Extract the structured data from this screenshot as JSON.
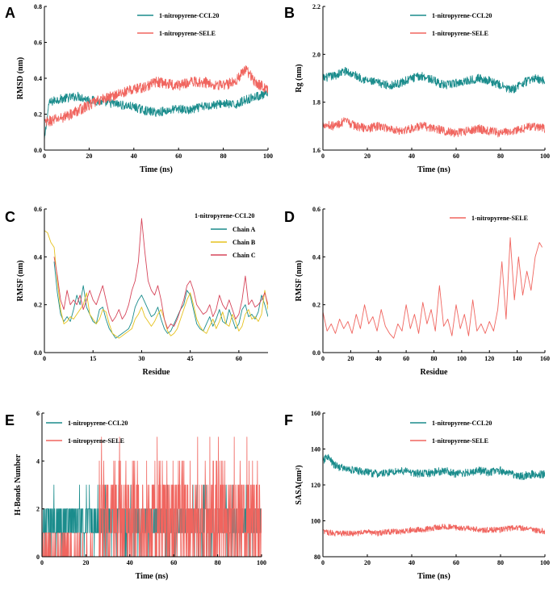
{
  "figure": {
    "colors": {
      "teal": "#1A8C8C",
      "salmon": "#F0655F",
      "gold": "#E6C21F",
      "crimson": "#D6455A",
      "axis": "#000000"
    }
  },
  "chart_data": [
    {
      "id": "A",
      "panel_label": "A",
      "type": "line",
      "title": "",
      "xlabel": "Time (ns)",
      "ylabel": "RMSD (nm)",
      "xlim": [
        0,
        100
      ],
      "ylim": [
        0,
        0.8
      ],
      "xticks": [
        0,
        20,
        40,
        60,
        80,
        100
      ],
      "yticks": [
        0.0,
        0.2,
        0.4,
        0.6,
        0.8
      ],
      "legend_title": "",
      "legend_position": "top-right",
      "series": [
        {
          "name": "1-nitropyrene-CCL20",
          "color": "#1A8C8C",
          "x": [
            0,
            2,
            5,
            10,
            15,
            20,
            25,
            30,
            35,
            40,
            45,
            50,
            55,
            60,
            65,
            70,
            75,
            80,
            85,
            90,
            95,
            100
          ],
          "y": [
            0.05,
            0.26,
            0.28,
            0.29,
            0.3,
            0.28,
            0.27,
            0.26,
            0.25,
            0.24,
            0.22,
            0.21,
            0.22,
            0.23,
            0.22,
            0.24,
            0.25,
            0.26,
            0.25,
            0.28,
            0.3,
            0.31
          ],
          "noise": 0.025
        },
        {
          "name": "1-nitropyrene-SELE",
          "color": "#F0655F",
          "x": [
            0,
            2,
            5,
            10,
            15,
            20,
            25,
            30,
            35,
            40,
            45,
            50,
            55,
            60,
            65,
            70,
            75,
            80,
            85,
            90,
            95,
            100
          ],
          "y": [
            0.15,
            0.16,
            0.17,
            0.19,
            0.22,
            0.25,
            0.28,
            0.3,
            0.32,
            0.34,
            0.35,
            0.38,
            0.37,
            0.36,
            0.38,
            0.38,
            0.37,
            0.36,
            0.38,
            0.45,
            0.37,
            0.34
          ],
          "noise": 0.03
        }
      ]
    },
    {
      "id": "B",
      "panel_label": "B",
      "type": "line",
      "title": "",
      "xlabel": "Time (ns)",
      "ylabel": "Rg (nm)",
      "xlim": [
        0,
        100
      ],
      "ylim": [
        1.6,
        2.2
      ],
      "xticks": [
        0,
        20,
        40,
        60,
        80,
        100
      ],
      "yticks": [
        1.6,
        1.8,
        2.0,
        2.2
      ],
      "legend_title": "",
      "legend_position": "top-right",
      "series": [
        {
          "name": "1-nitropyrene-CCL20",
          "color": "#1A8C8C",
          "x": [
            0,
            5,
            10,
            15,
            20,
            25,
            30,
            35,
            40,
            45,
            50,
            55,
            60,
            65,
            70,
            75,
            80,
            85,
            90,
            95,
            100
          ],
          "y": [
            1.9,
            1.91,
            1.93,
            1.91,
            1.89,
            1.88,
            1.87,
            1.88,
            1.9,
            1.91,
            1.89,
            1.87,
            1.88,
            1.89,
            1.9,
            1.89,
            1.87,
            1.85,
            1.88,
            1.9,
            1.89
          ],
          "noise": 0.018
        },
        {
          "name": "1-nitropyrene-SELE",
          "color": "#F0655F",
          "x": [
            0,
            5,
            10,
            15,
            20,
            25,
            30,
            35,
            40,
            45,
            50,
            55,
            60,
            65,
            70,
            75,
            80,
            85,
            90,
            95,
            100
          ],
          "y": [
            1.71,
            1.7,
            1.72,
            1.7,
            1.69,
            1.7,
            1.69,
            1.68,
            1.69,
            1.7,
            1.69,
            1.68,
            1.67,
            1.68,
            1.69,
            1.68,
            1.67,
            1.68,
            1.69,
            1.7,
            1.69
          ],
          "noise": 0.018
        }
      ]
    },
    {
      "id": "C",
      "panel_label": "C",
      "type": "line",
      "title": "",
      "xlabel": "Residue",
      "ylabel": "RMSF (nm)",
      "xlim": [
        0,
        69
      ],
      "ylim": [
        0,
        0.6
      ],
      "xticks": [
        0,
        15,
        30,
        45,
        60
      ],
      "yticks": [
        0.0,
        0.2,
        0.4,
        0.6
      ],
      "legend_title": "1-nitropyrene-CCL20",
      "legend_position": "top-right",
      "series": [
        {
          "name": "Chain A",
          "color": "#1A8C8C",
          "x": [
            3,
            4,
            5,
            6,
            7,
            8,
            9,
            10,
            11,
            12,
            13,
            14,
            15,
            16,
            17,
            18,
            19,
            20,
            21,
            22,
            23,
            24,
            25,
            26,
            27,
            28,
            29,
            30,
            31,
            32,
            33,
            34,
            35,
            36,
            37,
            38,
            39,
            40,
            41,
            42,
            43,
            44,
            45,
            46,
            47,
            48,
            49,
            50,
            51,
            52,
            53,
            54,
            55,
            56,
            57,
            58,
            59,
            60,
            61,
            62,
            63,
            64,
            65,
            66,
            67,
            68,
            69
          ],
          "y": [
            0.38,
            0.25,
            0.16,
            0.13,
            0.15,
            0.13,
            0.18,
            0.24,
            0.2,
            0.28,
            0.19,
            0.16,
            0.13,
            0.12,
            0.18,
            0.19,
            0.14,
            0.1,
            0.08,
            0.06,
            0.07,
            0.08,
            0.09,
            0.1,
            0.13,
            0.19,
            0.22,
            0.24,
            0.21,
            0.18,
            0.15,
            0.16,
            0.19,
            0.14,
            0.1,
            0.08,
            0.09,
            0.12,
            0.15,
            0.18,
            0.2,
            0.26,
            0.24,
            0.18,
            0.12,
            0.1,
            0.09,
            0.12,
            0.15,
            0.11,
            0.14,
            0.18,
            0.13,
            0.12,
            0.18,
            0.14,
            0.1,
            0.12,
            0.18,
            0.2,
            0.15,
            0.16,
            0.14,
            0.17,
            0.24,
            0.2,
            0.15
          ]
        },
        {
          "name": "Chain B",
          "color": "#E6C21F",
          "x": [
            0,
            1,
            2,
            3,
            4,
            5,
            6,
            7,
            8,
            9,
            10,
            11,
            12,
            13,
            14,
            15,
            16,
            17,
            18,
            19,
            20,
            21,
            22,
            23,
            24,
            25,
            26,
            27,
            28,
            29,
            30,
            31,
            32,
            33,
            34,
            35,
            36,
            37,
            38,
            39,
            40,
            41,
            42,
            43,
            44,
            45,
            46,
            47,
            48,
            49,
            50,
            51,
            52,
            53,
            54,
            55,
            56,
            57,
            58,
            59,
            60,
            61,
            62,
            63,
            64,
            65,
            66,
            67,
            68,
            69
          ],
          "y": [
            0.51,
            0.5,
            0.46,
            0.44,
            0.3,
            0.18,
            0.12,
            0.13,
            0.15,
            0.14,
            0.16,
            0.18,
            0.2,
            0.25,
            0.16,
            0.14,
            0.12,
            0.14,
            0.18,
            0.17,
            0.12,
            0.08,
            0.07,
            0.06,
            0.07,
            0.08,
            0.09,
            0.1,
            0.14,
            0.16,
            0.19,
            0.15,
            0.13,
            0.11,
            0.13,
            0.16,
            0.18,
            0.14,
            0.09,
            0.07,
            0.08,
            0.1,
            0.14,
            0.18,
            0.22,
            0.25,
            0.2,
            0.14,
            0.11,
            0.09,
            0.08,
            0.11,
            0.14,
            0.1,
            0.13,
            0.17,
            0.12,
            0.11,
            0.16,
            0.13,
            0.09,
            0.11,
            0.16,
            0.18,
            0.14,
            0.15,
            0.13,
            0.16,
            0.26,
            0.18
          ]
        },
        {
          "name": "Chain C",
          "color": "#D6455A",
          "x": [
            3,
            4,
            5,
            6,
            7,
            8,
            9,
            10,
            11,
            12,
            13,
            14,
            15,
            16,
            17,
            18,
            19,
            20,
            21,
            22,
            23,
            24,
            25,
            26,
            27,
            28,
            29,
            30,
            31,
            32,
            33,
            34,
            35,
            36,
            37,
            38,
            39,
            40,
            41,
            42,
            43,
            44,
            45,
            46,
            47,
            48,
            49,
            50,
            51,
            52,
            53,
            54,
            55,
            56,
            57,
            58,
            59,
            60,
            61,
            62,
            63,
            64,
            65,
            66,
            67,
            68,
            69
          ],
          "y": [
            0.4,
            0.32,
            0.22,
            0.18,
            0.26,
            0.2,
            0.22,
            0.2,
            0.24,
            0.18,
            0.22,
            0.26,
            0.22,
            0.2,
            0.24,
            0.28,
            0.22,
            0.16,
            0.13,
            0.15,
            0.18,
            0.14,
            0.16,
            0.2,
            0.26,
            0.3,
            0.38,
            0.56,
            0.42,
            0.3,
            0.26,
            0.24,
            0.28,
            0.22,
            0.14,
            0.1,
            0.12,
            0.11,
            0.14,
            0.18,
            0.22,
            0.28,
            0.3,
            0.26,
            0.2,
            0.18,
            0.16,
            0.17,
            0.2,
            0.15,
            0.18,
            0.24,
            0.2,
            0.18,
            0.22,
            0.18,
            0.14,
            0.16,
            0.22,
            0.32,
            0.2,
            0.22,
            0.19,
            0.2,
            0.22,
            0.25,
            0.2
          ]
        }
      ]
    },
    {
      "id": "D",
      "panel_label": "D",
      "type": "line",
      "title": "",
      "xlabel": "Residue",
      "ylabel": "RMSF (nm)",
      "xlim": [
        0,
        160
      ],
      "ylim": [
        0,
        0.6
      ],
      "xticks": [
        0,
        20,
        40,
        60,
        80,
        100,
        120,
        140,
        160
      ],
      "yticks": [
        0.0,
        0.2,
        0.4,
        0.6
      ],
      "legend_title": "",
      "legend_position": "top-right",
      "series": [
        {
          "name": "1-nitropyrene-SELE",
          "color": "#F0655F",
          "x": [
            0,
            3,
            6,
            9,
            12,
            15,
            18,
            21,
            24,
            27,
            30,
            33,
            36,
            39,
            42,
            45,
            48,
            51,
            54,
            57,
            60,
            63,
            66,
            69,
            72,
            75,
            78,
            81,
            84,
            87,
            90,
            93,
            96,
            99,
            102,
            105,
            108,
            111,
            114,
            117,
            120,
            123,
            126,
            129,
            132,
            135,
            138,
            141,
            144,
            147,
            150,
            153,
            156,
            158
          ],
          "y": [
            0.17,
            0.09,
            0.12,
            0.08,
            0.14,
            0.1,
            0.13,
            0.08,
            0.16,
            0.1,
            0.2,
            0.12,
            0.15,
            0.09,
            0.18,
            0.11,
            0.08,
            0.06,
            0.12,
            0.09,
            0.2,
            0.1,
            0.16,
            0.08,
            0.21,
            0.12,
            0.18,
            0.09,
            0.28,
            0.11,
            0.14,
            0.07,
            0.2,
            0.1,
            0.16,
            0.07,
            0.22,
            0.09,
            0.12,
            0.08,
            0.13,
            0.09,
            0.18,
            0.38,
            0.14,
            0.48,
            0.22,
            0.4,
            0.24,
            0.34,
            0.26,
            0.4,
            0.46,
            0.44
          ]
        }
      ]
    },
    {
      "id": "E",
      "panel_label": "E",
      "type": "line",
      "title": "",
      "xlabel": "Time (ns)",
      "ylabel": "H-Bonds Number",
      "xlim": [
        0,
        100
      ],
      "ylim": [
        0,
        6
      ],
      "xticks": [
        0,
        20,
        40,
        60,
        80,
        100
      ],
      "yticks": [
        0,
        2,
        4,
        6
      ],
      "legend_title": "",
      "legend_position": "top-left",
      "series": [
        {
          "name": "1-nitropyrene-CCL20",
          "color": "#1A8C8C",
          "x": [
            0,
            100
          ],
          "y": [
            1,
            2
          ],
          "step": true
        },
        {
          "name": "1-nitropyrene-SELE",
          "color": "#F0655F",
          "x": [
            0,
            100
          ],
          "y": [
            0,
            3
          ],
          "step": true
        }
      ]
    },
    {
      "id": "F",
      "panel_label": "F",
      "type": "line",
      "title": "",
      "xlabel": "Time (ns)",
      "ylabel": "SASA(nm²)",
      "xlim": [
        0,
        100
      ],
      "ylim": [
        80,
        160
      ],
      "xticks": [
        0,
        20,
        40,
        60,
        80,
        100
      ],
      "yticks": [
        80,
        100,
        120,
        140,
        160
      ],
      "legend_title": "",
      "legend_position": "top-right",
      "series": [
        {
          "name": "1-nitropyrene-CCL20",
          "color": "#1A8C8C",
          "x": [
            0,
            2,
            5,
            10,
            15,
            20,
            25,
            30,
            35,
            40,
            45,
            50,
            55,
            60,
            65,
            70,
            75,
            80,
            85,
            90,
            95,
            100
          ],
          "y": [
            133,
            136,
            131,
            129,
            128,
            127,
            126,
            127,
            128,
            127,
            126,
            127,
            128,
            126,
            127,
            128,
            127,
            128,
            126,
            125,
            126,
            126
          ],
          "noise": 2.2
        },
        {
          "name": "1-nitropyrene-SELE",
          "color": "#F0655F",
          "x": [
            0,
            5,
            10,
            15,
            20,
            25,
            30,
            35,
            40,
            45,
            50,
            55,
            60,
            65,
            70,
            75,
            80,
            85,
            90,
            95,
            100
          ],
          "y": [
            94,
            93,
            93,
            93,
            94,
            93,
            94,
            94,
            95,
            95,
            96,
            97,
            96,
            96,
            95,
            95,
            95,
            96,
            96,
            95,
            94
          ],
          "noise": 1.6
        }
      ]
    }
  ]
}
